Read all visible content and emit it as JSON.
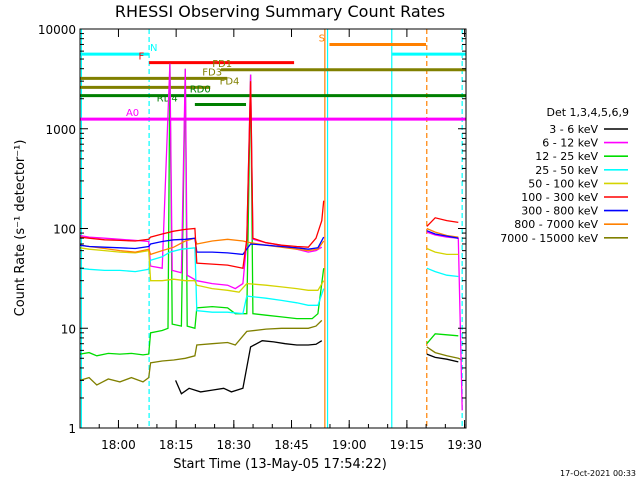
{
  "chart_data": {
    "type": "line",
    "title": "RHESSI Observing Summary Count Rates",
    "xlabel": "Start Time (13-May-05 17:54:22)",
    "ylabel": "Count Rate (s⁻¹ detector⁻¹)",
    "ylog": true,
    "ylim": [
      1,
      10000
    ],
    "xlim_minutes": [
      -4.37,
      96.0
    ],
    "x_ticks": [
      {
        "m": 5.63,
        "label": "18:00"
      },
      {
        "m": 20.63,
        "label": "18:15"
      },
      {
        "m": 35.63,
        "label": "18:30"
      },
      {
        "m": 50.63,
        "label": "18:45"
      },
      {
        "m": 65.63,
        "label": "19:00"
      },
      {
        "m": 80.63,
        "label": "19:15"
      },
      {
        "m": 95.63,
        "label": "19:30"
      }
    ],
    "y_ticks": [
      {
        "v": 1,
        "label": "1"
      },
      {
        "v": 10,
        "label": "10"
      },
      {
        "v": 100,
        "label": "100"
      },
      {
        "v": 1000,
        "label": "1000"
      },
      {
        "v": 10000,
        "label": "10000"
      }
    ],
    "legend": {
      "position": "right",
      "header": "Det 1,3,4,5,6,9",
      "entries": [
        {
          "label": "3 - 6 keV",
          "color": "#000000"
        },
        {
          "label": "6 - 12 keV",
          "color": "#ff00ff"
        },
        {
          "label": "12 - 25 keV",
          "color": "#00dd00"
        },
        {
          "label": "25 - 50 keV",
          "color": "#00ffff"
        },
        {
          "label": "50 - 100 keV",
          "color": "#d4d400"
        },
        {
          "label": "100 - 300 keV",
          "color": "#ff0000"
        },
        {
          "label": "300 - 800 keV",
          "color": "#0000ff"
        },
        {
          "label": "800 - 7000 keV",
          "color": "#ff8000"
        },
        {
          "label": "7000 - 15000 keV",
          "color": "#808000"
        }
      ]
    },
    "flag_bars": [
      {
        "label": "N",
        "color": "#00ffff",
        "y": 5600,
        "x1": -4.37,
        "x2": 13.5,
        "label_m": 14.8
      },
      {
        "label": "N",
        "color": "#00ffff",
        "y": 5600,
        "x1": 76.8,
        "x2": 96.0,
        "label_m": null
      },
      {
        "label": "S",
        "color": "#ff8000",
        "y": 7000,
        "x1": 60.5,
        "x2": 85.6,
        "label_m": 58.5
      },
      {
        "label": "F",
        "color": "#ff0000",
        "y": 4600,
        "x1": 13.6,
        "x2": 51.3,
        "label_m": 11.6
      },
      {
        "label": "FD1",
        "color": "#808000",
        "y": 3900,
        "x1": 32.3,
        "x2": 96.0,
        "label_m": 32.6
      },
      {
        "label": "FD3",
        "color": "#808000",
        "y": 3200,
        "x1": -4.37,
        "x2": 33.9,
        "label_m": 30.0
      },
      {
        "label": "FD4",
        "color": "#808000",
        "y": 2600,
        "x1": -4.37,
        "x2": 29.5,
        "label_m": 34.5
      },
      {
        "label": "RD0",
        "color": "#007f00",
        "y": 2150,
        "x1": -4.37,
        "x2": 96.0,
        "label_m": 26.9
      },
      {
        "label": "RD4",
        "color": "#007f00",
        "y": 1750,
        "x1": 25.5,
        "x2": 38.8,
        "label_m": 18.3
      },
      {
        "label": "A0",
        "color": "#ff00ff",
        "y": 1250,
        "x1": -4.37,
        "x2": 96.0,
        "label_m": 9.3
      }
    ],
    "vertical_markers": [
      {
        "m": -4.0,
        "color": "#00ffff",
        "style": "solid"
      },
      {
        "m": 13.6,
        "color": "#00ffff",
        "style": "dashed"
      },
      {
        "m": 59.3,
        "color": "#ff8000",
        "style": "solid"
      },
      {
        "m": 60.0,
        "color": "#00ffff",
        "style": "solid"
      },
      {
        "m": 76.7,
        "color": "#00ffff",
        "style": "solid"
      },
      {
        "m": 85.8,
        "color": "#ff8000",
        "style": "dashed"
      },
      {
        "m": 95.0,
        "color": "#00ffff",
        "style": "dashed"
      }
    ],
    "series": [
      {
        "name": "7000 - 15000 keV",
        "color": "#808000",
        "points": [
          [
            -4.4,
            3.0
          ],
          [
            -2,
            3.2
          ],
          [
            0,
            2.7
          ],
          [
            3,
            3.1
          ],
          [
            6,
            2.9
          ],
          [
            9,
            3.2
          ],
          [
            12,
            2.9
          ],
          [
            13.5,
            3.2
          ],
          [
            14,
            4.5
          ],
          [
            17,
            4.7
          ],
          [
            20,
            4.8
          ],
          [
            23,
            5.0
          ],
          [
            25.5,
            5.3
          ],
          [
            26,
            6.8
          ],
          [
            30,
            7.0
          ],
          [
            34,
            7.2
          ],
          [
            36,
            6.8
          ],
          [
            39,
            9.3
          ],
          [
            44,
            9.8
          ],
          [
            48,
            10
          ],
          [
            52,
            10
          ],
          [
            55,
            10
          ],
          [
            57,
            10.5
          ],
          [
            58.5,
            12
          ],
          [
            null,
            null
          ],
          [
            85.8,
            6.5
          ],
          [
            88,
            5.7
          ],
          [
            91,
            5.3
          ],
          [
            94,
            5.0
          ],
          [
            95,
            4.8
          ]
        ]
      },
      {
        "name": "3 - 6 keV",
        "color": "#000000",
        "points": [
          [
            20.5,
            3.0
          ],
          [
            22,
            2.2
          ],
          [
            24,
            2.5
          ],
          [
            27,
            2.3
          ],
          [
            30,
            2.4
          ],
          [
            33,
            2.5
          ],
          [
            35,
            2.3
          ],
          [
            38,
            2.5
          ],
          [
            40,
            6.5
          ],
          [
            43,
            7.5
          ],
          [
            46,
            7.3
          ],
          [
            49,
            7.0
          ],
          [
            52,
            6.8
          ],
          [
            55,
            6.8
          ],
          [
            57,
            6.9
          ],
          [
            58.5,
            7.5
          ],
          [
            null,
            null
          ],
          [
            85.8,
            5.5
          ],
          [
            88,
            5.1
          ],
          [
            91,
            4.9
          ],
          [
            94,
            4.6
          ]
        ]
      },
      {
        "name": "12 - 25 keV",
        "color": "#00dd00",
        "points": [
          [
            -4.4,
            5.5
          ],
          [
            -2,
            5.7
          ],
          [
            0,
            5.3
          ],
          [
            3,
            5.6
          ],
          [
            6,
            5.5
          ],
          [
            9,
            5.6
          ],
          [
            12,
            5.4
          ],
          [
            13.5,
            5.5
          ],
          [
            14,
            9.0
          ],
          [
            17,
            9.5
          ],
          [
            18.5,
            10
          ],
          [
            19,
            4500
          ],
          [
            19.6,
            11
          ],
          [
            22,
            10.5
          ],
          [
            23,
            4000
          ],
          [
            23.5,
            10.5
          ],
          [
            25.5,
            10
          ],
          [
            26,
            16
          ],
          [
            30,
            16.5
          ],
          [
            34,
            16
          ],
          [
            36,
            14
          ],
          [
            39,
            14
          ],
          [
            40,
            3500
          ],
          [
            40.6,
            14
          ],
          [
            44,
            13.5
          ],
          [
            48,
            13
          ],
          [
            52,
            12.5
          ],
          [
            56,
            12.5
          ],
          [
            57.5,
            14
          ],
          [
            59,
            40
          ],
          [
            null,
            null
          ],
          [
            85.8,
            7.0
          ],
          [
            88,
            8.8
          ],
          [
            91,
            8.6
          ],
          [
            94,
            8.4
          ]
        ]
      },
      {
        "name": "6 - 12 keV",
        "color": "#ff00ff",
        "points": [
          [
            -4.4,
            85
          ],
          [
            -2,
            82
          ],
          [
            2,
            80
          ],
          [
            6,
            78
          ],
          [
            10,
            76
          ],
          [
            13.5,
            74
          ],
          [
            14,
            42
          ],
          [
            17,
            40
          ],
          [
            19,
            4500
          ],
          [
            19.6,
            38
          ],
          [
            22,
            36
          ],
          [
            23,
            4000
          ],
          [
            23.5,
            34
          ],
          [
            26,
            30
          ],
          [
            30,
            28
          ],
          [
            34,
            27
          ],
          [
            36,
            25
          ],
          [
            38,
            28
          ],
          [
            39,
            75
          ],
          [
            40,
            3500
          ],
          [
            40.6,
            78
          ],
          [
            44,
            72
          ],
          [
            48,
            68
          ],
          [
            52,
            62
          ],
          [
            55,
            58
          ],
          [
            57,
            60
          ],
          [
            58.5,
            65
          ],
          [
            null,
            null
          ],
          [
            85.8,
            92
          ],
          [
            88,
            86
          ],
          [
            91,
            82
          ],
          [
            94,
            80
          ],
          [
            95,
            1.5
          ]
        ]
      },
      {
        "name": "25 - 50 keV",
        "color": "#00ffff",
        "points": [
          [
            -4.4,
            40
          ],
          [
            -2,
            39
          ],
          [
            2,
            38
          ],
          [
            6,
            38
          ],
          [
            10,
            37
          ],
          [
            13.5,
            39
          ],
          [
            14,
            48
          ],
          [
            17,
            52
          ],
          [
            19,
            58
          ],
          [
            22,
            62
          ],
          [
            25.5,
            64
          ],
          [
            26,
            15
          ],
          [
            30,
            14.5
          ],
          [
            34,
            14.5
          ],
          [
            38,
            14
          ],
          [
            39,
            21
          ],
          [
            44,
            20
          ],
          [
            48,
            19
          ],
          [
            52,
            18
          ],
          [
            55,
            17
          ],
          [
            57.5,
            17
          ],
          [
            59,
            25
          ],
          [
            null,
            null
          ],
          [
            85.8,
            40
          ],
          [
            88,
            37
          ],
          [
            91,
            34
          ],
          [
            94,
            33
          ]
        ]
      },
      {
        "name": "50 - 100 keV",
        "color": "#d4d400",
        "points": [
          [
            -4.4,
            64
          ],
          [
            -2,
            62
          ],
          [
            2,
            60
          ],
          [
            6,
            58
          ],
          [
            10,
            57
          ],
          [
            13.5,
            60
          ],
          [
            14,
            30
          ],
          [
            17,
            30
          ],
          [
            20,
            31
          ],
          [
            23,
            30
          ],
          [
            25.5,
            30
          ],
          [
            26,
            27
          ],
          [
            30,
            25
          ],
          [
            34,
            24
          ],
          [
            37,
            23
          ],
          [
            39,
            28
          ],
          [
            44,
            27
          ],
          [
            48,
            26
          ],
          [
            52,
            25
          ],
          [
            55,
            24
          ],
          [
            57.5,
            24
          ],
          [
            59,
            30
          ],
          [
            null,
            null
          ],
          [
            85.8,
            63
          ],
          [
            88,
            58
          ],
          [
            91,
            55
          ],
          [
            94,
            55
          ]
        ]
      },
      {
        "name": "800 - 7000 keV",
        "color": "#ff8000",
        "points": [
          [
            -4.4,
            68
          ],
          [
            -2,
            66
          ],
          [
            2,
            63
          ],
          [
            6,
            60
          ],
          [
            10,
            58
          ],
          [
            13.5,
            62
          ],
          [
            14,
            55
          ],
          [
            17,
            60
          ],
          [
            20,
            65
          ],
          [
            23,
            75
          ],
          [
            25.5,
            80
          ],
          [
            26,
            70
          ],
          [
            30,
            75
          ],
          [
            34,
            78
          ],
          [
            38,
            75
          ],
          [
            40,
            72
          ],
          [
            44,
            68
          ],
          [
            48,
            65
          ],
          [
            52,
            62
          ],
          [
            55,
            60
          ],
          [
            57.5,
            62
          ],
          [
            59,
            75
          ],
          [
            null,
            null
          ],
          [
            85.8,
            100
          ],
          [
            88,
            92
          ],
          [
            91,
            85
          ],
          [
            94,
            82
          ]
        ]
      },
      {
        "name": "300 - 800 keV",
        "color": "#0000ff",
        "points": [
          [
            -4.4,
            68
          ],
          [
            -2,
            66
          ],
          [
            2,
            65
          ],
          [
            6,
            64
          ],
          [
            10,
            63
          ],
          [
            13.5,
            66
          ],
          [
            14,
            70
          ],
          [
            17,
            74
          ],
          [
            20,
            77
          ],
          [
            23,
            78
          ],
          [
            25.5,
            80
          ],
          [
            26,
            58
          ],
          [
            30,
            58
          ],
          [
            34,
            57
          ],
          [
            38,
            55
          ],
          [
            40,
            70
          ],
          [
            44,
            68
          ],
          [
            48,
            66
          ],
          [
            52,
            64
          ],
          [
            55,
            62
          ],
          [
            57.5,
            64
          ],
          [
            59,
            82
          ],
          [
            null,
            null
          ],
          [
            85.8,
            95
          ],
          [
            88,
            88
          ],
          [
            91,
            84
          ],
          [
            94,
            80
          ]
        ]
      },
      {
        "name": "100 - 300 keV",
        "color": "#ff0000",
        "points": [
          [
            -4.4,
            82
          ],
          [
            -2,
            80
          ],
          [
            2,
            77
          ],
          [
            6,
            76
          ],
          [
            10,
            75
          ],
          [
            13.5,
            78
          ],
          [
            14,
            82
          ],
          [
            17,
            88
          ],
          [
            20,
            94
          ],
          [
            23,
            98
          ],
          [
            25.5,
            100
          ],
          [
            26,
            45
          ],
          [
            30,
            44
          ],
          [
            34,
            43
          ],
          [
            38,
            40
          ],
          [
            39,
            78
          ],
          [
            40,
            3000
          ],
          [
            40.6,
            80
          ],
          [
            44,
            72
          ],
          [
            48,
            68
          ],
          [
            52,
            66
          ],
          [
            55,
            65
          ],
          [
            57,
            80
          ],
          [
            58.5,
            120
          ],
          [
            59,
            190
          ],
          [
            null,
            null
          ],
          [
            85.8,
            105
          ],
          [
            88,
            128
          ],
          [
            91,
            120
          ],
          [
            94,
            115
          ]
        ]
      }
    ]
  },
  "footer": {
    "date": "17-Oct-2021 00:33"
  }
}
